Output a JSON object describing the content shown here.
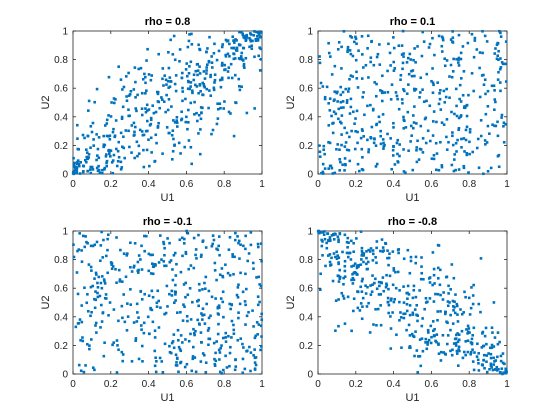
{
  "figure": {
    "background": "#ffffff",
    "point_color": "#0072BD"
  },
  "chart_data": [
    {
      "type": "scatter",
      "title": "rho = 0.8",
      "xlabel": "U1",
      "ylabel": "U2",
      "xlim": [
        0,
        1
      ],
      "ylim": [
        0,
        1
      ],
      "xticks": [
        "0",
        "0.2",
        "0.4",
        "0.6",
        "0.8",
        "1"
      ],
      "yticks": [
        "0",
        "0.2",
        "0.4",
        "0.6",
        "0.8",
        "1"
      ],
      "grid": false,
      "series": [
        {
          "color": "#0072BD",
          "rho": 0.8,
          "count": 500
        }
      ]
    },
    {
      "type": "scatter",
      "title": "rho = 0.1",
      "xlabel": "U1",
      "ylabel": "U2",
      "xlim": [
        0,
        1
      ],
      "ylim": [
        0,
        1
      ],
      "xticks": [
        "0",
        "0.2",
        "0.4",
        "0.6",
        "0.8",
        "1"
      ],
      "yticks": [
        "0",
        "0.2",
        "0.4",
        "0.6",
        "0.8",
        "1"
      ],
      "grid": false,
      "series": [
        {
          "color": "#0072BD",
          "rho": 0.1,
          "count": 500
        }
      ]
    },
    {
      "type": "scatter",
      "title": "rho = -0.1",
      "xlabel": "U1",
      "ylabel": "U2",
      "xlim": [
        0,
        1
      ],
      "ylim": [
        0,
        1
      ],
      "xticks": [
        "0",
        "0.2",
        "0.4",
        "0.6",
        "0.8",
        "1"
      ],
      "yticks": [
        "0",
        "0.2",
        "0.4",
        "0.6",
        "0.8",
        "1"
      ],
      "grid": false,
      "series": [
        {
          "color": "#0072BD",
          "rho": -0.1,
          "count": 500
        }
      ]
    },
    {
      "type": "scatter",
      "title": "rho = -0.8",
      "xlabel": "U1",
      "ylabel": "U2",
      "xlim": [
        0,
        1
      ],
      "ylim": [
        0,
        1
      ],
      "xticks": [
        "0",
        "0.2",
        "0.4",
        "0.6",
        "0.8",
        "1"
      ],
      "yticks": [
        "0",
        "0.2",
        "0.4",
        "0.6",
        "0.8",
        "1"
      ],
      "grid": false,
      "series": [
        {
          "color": "#0072BD",
          "rho": -0.8,
          "count": 500
        }
      ]
    }
  ]
}
